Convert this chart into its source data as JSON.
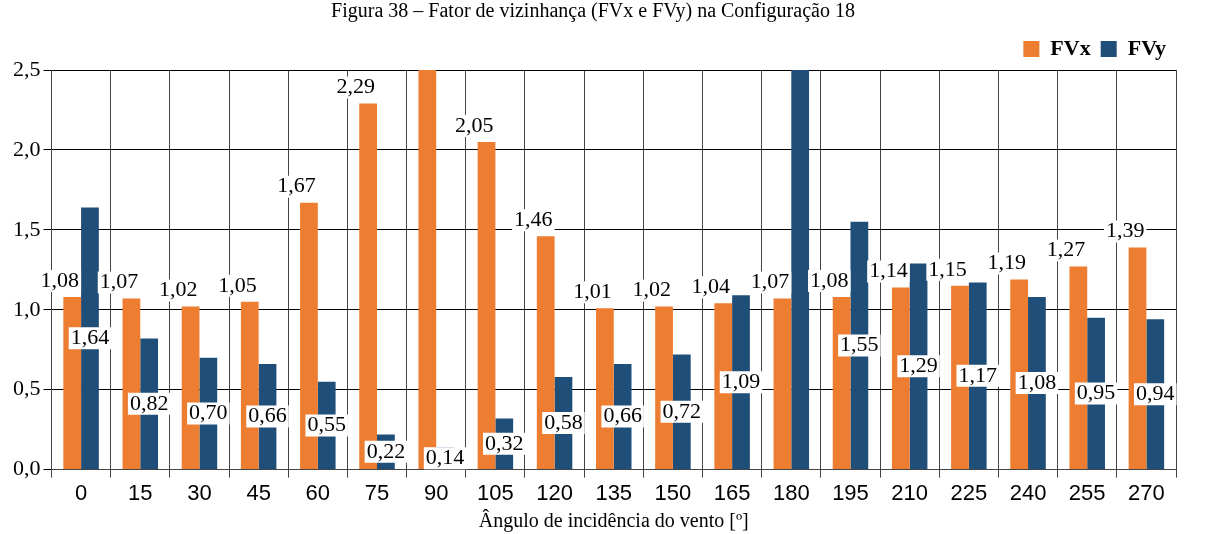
{
  "chart_data": {
    "type": "bar",
    "title": "Figura 38 – Fator de vizinhança (FVx e FVy) na Configuração 18",
    "xlabel": "Ângulo de incidência do vento [º]",
    "categories": [
      "0",
      "15",
      "30",
      "45",
      "60",
      "75",
      "90",
      "105",
      "120",
      "135",
      "150",
      "165",
      "180",
      "195",
      "210",
      "225",
      "240",
      "255",
      "270"
    ],
    "series": [
      {
        "name": "FVx",
        "color": "#ed7d31",
        "values": [
          1.08,
          1.07,
          1.02,
          1.05,
          1.67,
          2.29,
          2.5,
          2.05,
          1.46,
          1.01,
          1.02,
          1.04,
          1.07,
          1.08,
          1.14,
          1.15,
          1.19,
          1.27,
          1.39
        ],
        "value_labels": [
          "1,08",
          "1,07",
          "1,02",
          "1,05",
          "1,67",
          "2,29",
          null,
          "2,05",
          "1,46",
          "1,01",
          "1,02",
          "1,04",
          "1,07",
          "1,08",
          "1,14",
          "1,15",
          "1,19",
          "1,27",
          "1,39"
        ]
      },
      {
        "name": "FVy",
        "color": "#1f4e79",
        "values": [
          1.64,
          0.82,
          0.7,
          0.66,
          0.55,
          0.22,
          0.14,
          0.32,
          0.58,
          0.66,
          0.72,
          1.09,
          2.5,
          1.55,
          1.29,
          1.17,
          1.08,
          0.95,
          0.94
        ],
        "value_labels": [
          "1,64",
          "0,82",
          "0,70",
          "0,66",
          "0,55",
          "0,22",
          "0,14",
          "0,32",
          "0,58",
          "0,66",
          "0,72",
          "1,09",
          null,
          "1,55",
          "1,29",
          "1,17",
          "1,08",
          "0,95",
          "0,94"
        ]
      }
    ],
    "ylim": [
      0,
      2.5
    ],
    "yticks": [
      {
        "value": 0,
        "label": "0,0"
      },
      {
        "value": 0.5,
        "label": "0,5"
      },
      {
        "value": 1,
        "label": "1,0"
      },
      {
        "value": 1.5,
        "label": "1,5"
      },
      {
        "value": 2,
        "label": "2,0"
      },
      {
        "value": 2.5,
        "label": "2,5"
      }
    ],
    "grid": true,
    "legend": "top right"
  }
}
